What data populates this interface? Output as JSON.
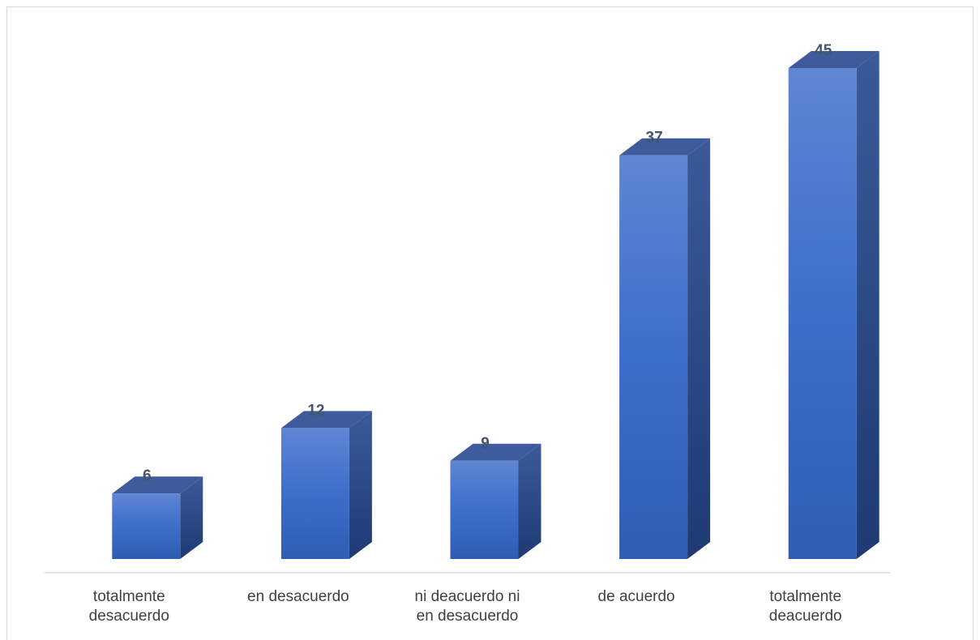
{
  "chart_data": {
    "type": "bar3d",
    "categories": [
      "totalmente desacuerdo",
      "en desacuerdo",
      "ni deacuerdo ni en desacuerdo",
      "de acuerdo",
      "totalmente deacuerdo"
    ],
    "values": [
      6,
      12,
      9,
      37,
      45
    ],
    "color": "#4472c4"
  }
}
